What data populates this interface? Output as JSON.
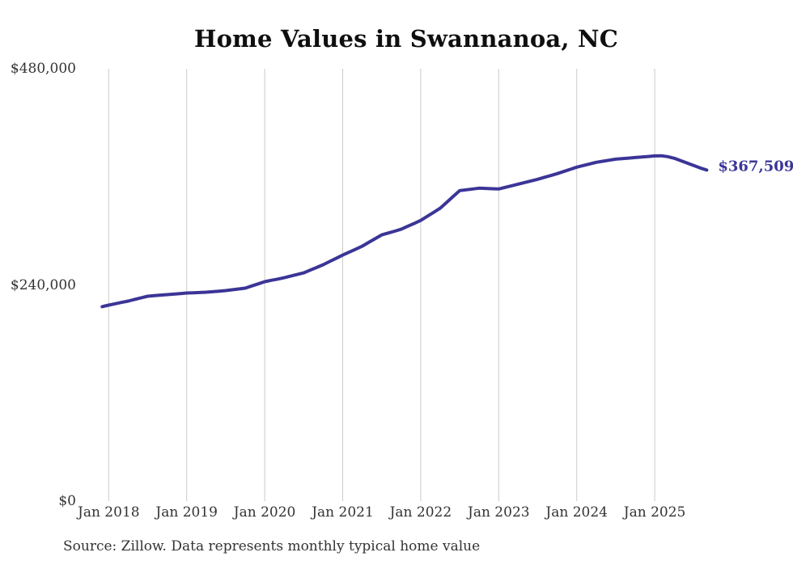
{
  "title": "Home Values in Swannanoa, NC",
  "source_note": "Source: Zillow. Data represents monthly typical home value",
  "colors": {
    "line": "#3b3597",
    "grid": "#cccccc",
    "axis_text": "#333333",
    "title_text": "#0f0f0f",
    "end_label_text": "#3b3597"
  },
  "chart_data": {
    "type": "line",
    "title": "Home Values in Swannanoa, NC",
    "series_name": "Monthly typical home value",
    "xlabel": "",
    "ylabel": "",
    "ylim": [
      0,
      480000
    ],
    "grid": "vertical-only",
    "legend": "none",
    "y_ticks": [
      {
        "label": "$480,000",
        "value": 480000
      },
      {
        "label": "$240,000",
        "value": 240000
      },
      {
        "label": "$0",
        "value": 0
      }
    ],
    "x_ticks": [
      "Jan 2018",
      "Jan 2019",
      "Jan 2020",
      "Jan 2021",
      "Jan 2022",
      "Jan 2023",
      "Jan 2024",
      "Jan 2025"
    ],
    "end_value_label": "$367,509",
    "last_value": 367509,
    "x": [
      "2017-12",
      "2018-01",
      "2018-02",
      "2018-03",
      "2018-04",
      "2018-05",
      "2018-06",
      "2018-07",
      "2018-08",
      "2018-09",
      "2018-10",
      "2018-11",
      "2018-12",
      "2019-01",
      "2019-02",
      "2019-03",
      "2019-04",
      "2019-05",
      "2019-06",
      "2019-07",
      "2019-08",
      "2019-09",
      "2019-10",
      "2019-11",
      "2019-12",
      "2020-01",
      "2020-02",
      "2020-03",
      "2020-04",
      "2020-05",
      "2020-06",
      "2020-07",
      "2020-08",
      "2020-09",
      "2020-10",
      "2020-11",
      "2020-12",
      "2021-01",
      "2021-02",
      "2021-03",
      "2021-04",
      "2021-05",
      "2021-06",
      "2021-07",
      "2021-08",
      "2021-09",
      "2021-10",
      "2021-11",
      "2021-12",
      "2022-01",
      "2022-02",
      "2022-03",
      "2022-04",
      "2022-05",
      "2022-06",
      "2022-07",
      "2022-08",
      "2022-09",
      "2022-10",
      "2022-11",
      "2022-12",
      "2023-01",
      "2023-02",
      "2023-03",
      "2023-04",
      "2023-05",
      "2023-06",
      "2023-07",
      "2023-08",
      "2023-09",
      "2023-10",
      "2023-11",
      "2023-12",
      "2024-01",
      "2024-02",
      "2024-03",
      "2024-04",
      "2024-05",
      "2024-06",
      "2024-07",
      "2024-08",
      "2024-09",
      "2024-10",
      "2024-11",
      "2024-12",
      "2025-01",
      "2025-02",
      "2025-03",
      "2025-04",
      "2025-05",
      "2025-06",
      "2025-07",
      "2025-08",
      "2025-09"
    ],
    "values": [
      215900,
      217600,
      219100,
      220600,
      222100,
      223900,
      225700,
      227400,
      228100,
      228700,
      229200,
      229800,
      230400,
      231000,
      231300,
      231600,
      231900,
      232500,
      233100,
      233700,
      234600,
      235500,
      236400,
      238800,
      241200,
      243600,
      245100,
      246500,
      248000,
      249800,
      251600,
      253400,
      256400,
      259400,
      262400,
      266000,
      269500,
      273100,
      276400,
      279700,
      283000,
      287200,
      291300,
      295500,
      297600,
      299700,
      301800,
      305100,
      308300,
      311600,
      316100,
      320600,
      325100,
      331600,
      338200,
      344700,
      345600,
      346500,
      347400,
      347100,
      346800,
      346500,
      348300,
      350100,
      351900,
      353700,
      355500,
      357300,
      359400,
      361400,
      363500,
      365900,
      368300,
      370700,
      372500,
      374300,
      376100,
      377300,
      378400,
      379600,
      380200,
      380800,
      381400,
      382000,
      382600,
      383200,
      383400,
      382400,
      380600,
      377900,
      375200,
      372500,
      369800,
      367509
    ]
  }
}
